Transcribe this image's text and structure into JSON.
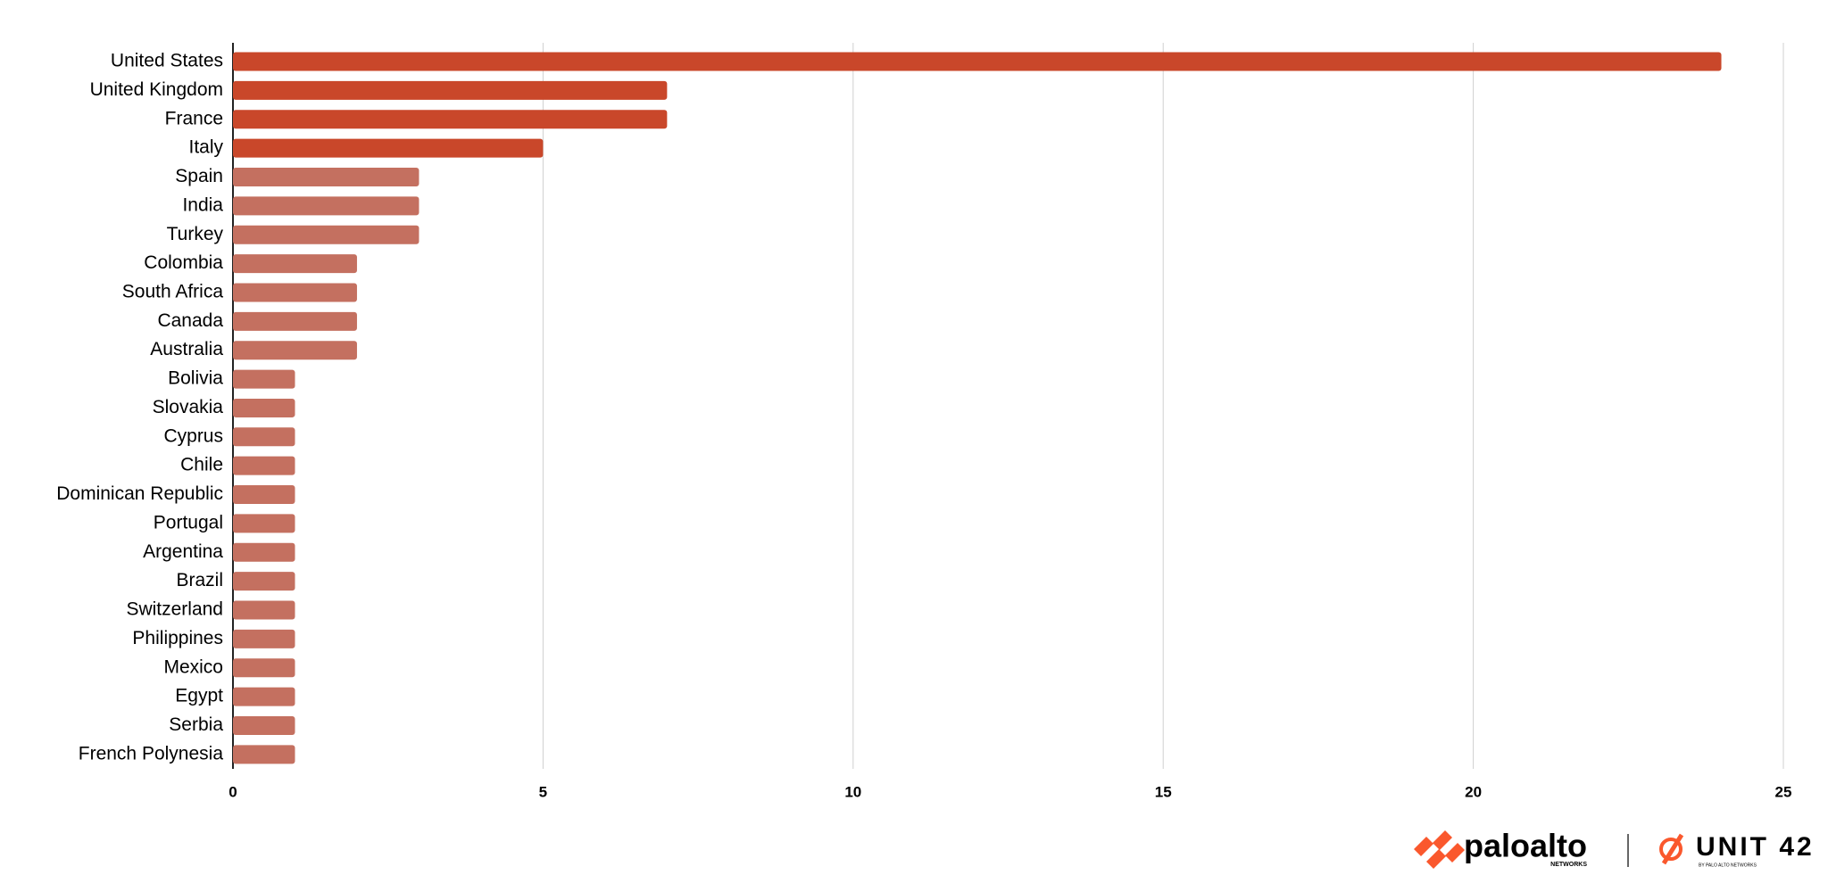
{
  "chart_data": {
    "type": "hbar",
    "categories": [
      "United States",
      "United Kingdom",
      "France",
      "Italy",
      "Spain",
      "India",
      "Turkey",
      "Colombia",
      "South Africa",
      "Canada",
      "Australia",
      "Bolivia",
      "Slovakia",
      "Cyprus",
      "Chile",
      "Dominican Republic",
      "Portugal",
      "Argentina",
      "Brazil",
      "Switzerland",
      "Philippines",
      "Mexico",
      "Egypt",
      "Serbia",
      "French Polynesia"
    ],
    "values": [
      24,
      7,
      7,
      5,
      3,
      3,
      3,
      2,
      2,
      2,
      2,
      1,
      1,
      1,
      1,
      1,
      1,
      1,
      1,
      1,
      1,
      1,
      1,
      1,
      1
    ],
    "colors": [
      "#c9472a",
      "#c9472a",
      "#c9472a",
      "#c9472a",
      "#c47060",
      "#c47060",
      "#c47060",
      "#c47060",
      "#c47060",
      "#c47060",
      "#c47060",
      "#c47060",
      "#c47060",
      "#c47060",
      "#c47060",
      "#c47060",
      "#c47060",
      "#c47060",
      "#c47060",
      "#c47060",
      "#c47060",
      "#c47060",
      "#c47060",
      "#c47060",
      "#c47060"
    ],
    "xlim": [
      0,
      25
    ],
    "xticks": [
      0,
      5,
      10,
      15,
      20,
      25
    ],
    "grid": true
  },
  "footer": {
    "brand": "paloalto",
    "brand_sub": "NETWORKS",
    "unit": "UNIT 42",
    "unit_sub": "BY PALO ALTO NETWORKS"
  }
}
